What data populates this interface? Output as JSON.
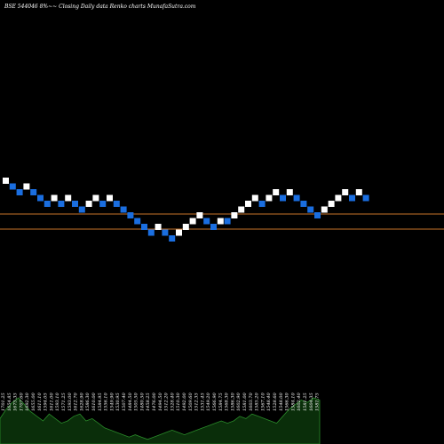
{
  "chart_data": {
    "type": "renko",
    "title": "BSE 544046  8%~~  Closing Daily data  Renko  charts MunafaSutra.com",
    "background": "#000000",
    "colors": {
      "up_brick": "#ffffff",
      "down_brick": "#1a6ee0",
      "reference_line": "#c8742a",
      "volume_fill": "#0a2e0a",
      "volume_line": "#2a8a2a"
    },
    "bricks": [
      {
        "dir": "up",
        "level": 10
      },
      {
        "dir": "down",
        "level": 9
      },
      {
        "dir": "down",
        "level": 8
      },
      {
        "dir": "up",
        "level": 9
      },
      {
        "dir": "down",
        "level": 8
      },
      {
        "dir": "down",
        "level": 7
      },
      {
        "dir": "down",
        "level": 6
      },
      {
        "dir": "up",
        "level": 7
      },
      {
        "dir": "down",
        "level": 6
      },
      {
        "dir": "up",
        "level": 7
      },
      {
        "dir": "down",
        "level": 6
      },
      {
        "dir": "down",
        "level": 5
      },
      {
        "dir": "up",
        "level": 6
      },
      {
        "dir": "up",
        "level": 7
      },
      {
        "dir": "down",
        "level": 6
      },
      {
        "dir": "up",
        "level": 7
      },
      {
        "dir": "down",
        "level": 6
      },
      {
        "dir": "down",
        "level": 5
      },
      {
        "dir": "down",
        "level": 4
      },
      {
        "dir": "down",
        "level": 3
      },
      {
        "dir": "down",
        "level": 2
      },
      {
        "dir": "down",
        "level": 1
      },
      {
        "dir": "up",
        "level": 2
      },
      {
        "dir": "down",
        "level": 1
      },
      {
        "dir": "down",
        "level": 0
      },
      {
        "dir": "up",
        "level": 1
      },
      {
        "dir": "up",
        "level": 2
      },
      {
        "dir": "up",
        "level": 3
      },
      {
        "dir": "up",
        "level": 4
      },
      {
        "dir": "down",
        "level": 3
      },
      {
        "dir": "down",
        "level": 2
      },
      {
        "dir": "up",
        "level": 3
      },
      {
        "dir": "down",
        "level": 3
      },
      {
        "dir": "up",
        "level": 4
      },
      {
        "dir": "up",
        "level": 5
      },
      {
        "dir": "up",
        "level": 6
      },
      {
        "dir": "up",
        "level": 7
      },
      {
        "dir": "down",
        "level": 6
      },
      {
        "dir": "up",
        "level": 7
      },
      {
        "dir": "up",
        "level": 8
      },
      {
        "dir": "down",
        "level": 7
      },
      {
        "dir": "up",
        "level": 8
      },
      {
        "dir": "down",
        "level": 7
      },
      {
        "dir": "down",
        "level": 6
      },
      {
        "dir": "down",
        "level": 5
      },
      {
        "dir": "down",
        "level": 4
      },
      {
        "dir": "up",
        "level": 5
      },
      {
        "dir": "up",
        "level": 6
      },
      {
        "dir": "up",
        "level": 7
      },
      {
        "dir": "up",
        "level": 8
      },
      {
        "dir": "down",
        "level": 7
      },
      {
        "dir": "up",
        "level": 8
      },
      {
        "dir": "down",
        "level": 7
      }
    ],
    "reference_lines": [
      "upper",
      "lower"
    ],
    "volume_labels": [
      "1701.25",
      "1654.85",
      "1675.35",
      "1707.60",
      "1692.30",
      "1655.00",
      "1611.10",
      "1594.05",
      "1611.00",
      "1593.10",
      "1571.25",
      "1593.00",
      "1612.70",
      "1628.90",
      "1586.30",
      "1610.00",
      "1584.95",
      "1556.10",
      "1549.90",
      "1530.95",
      "1507.40",
      "1484.50",
      "1505.50",
      "1480.50",
      "1458.25",
      "1476.00",
      "1494.50",
      "1512.20",
      "1528.40",
      "1510.30",
      "1492.00",
      "1509.60",
      "1512.35",
      "1531.45",
      "1549.20",
      "1566.90",
      "1584.75",
      "1568.30",
      "1586.30",
      "1602.90",
      "1581.00",
      "1603.70",
      "1585.20",
      "1567.10",
      "1548.40",
      "1528.60",
      "1548.00",
      "1566.30",
      "1584.10",
      "1602.40",
      "1581.25",
      "1604.35",
      "1581.75"
    ]
  }
}
